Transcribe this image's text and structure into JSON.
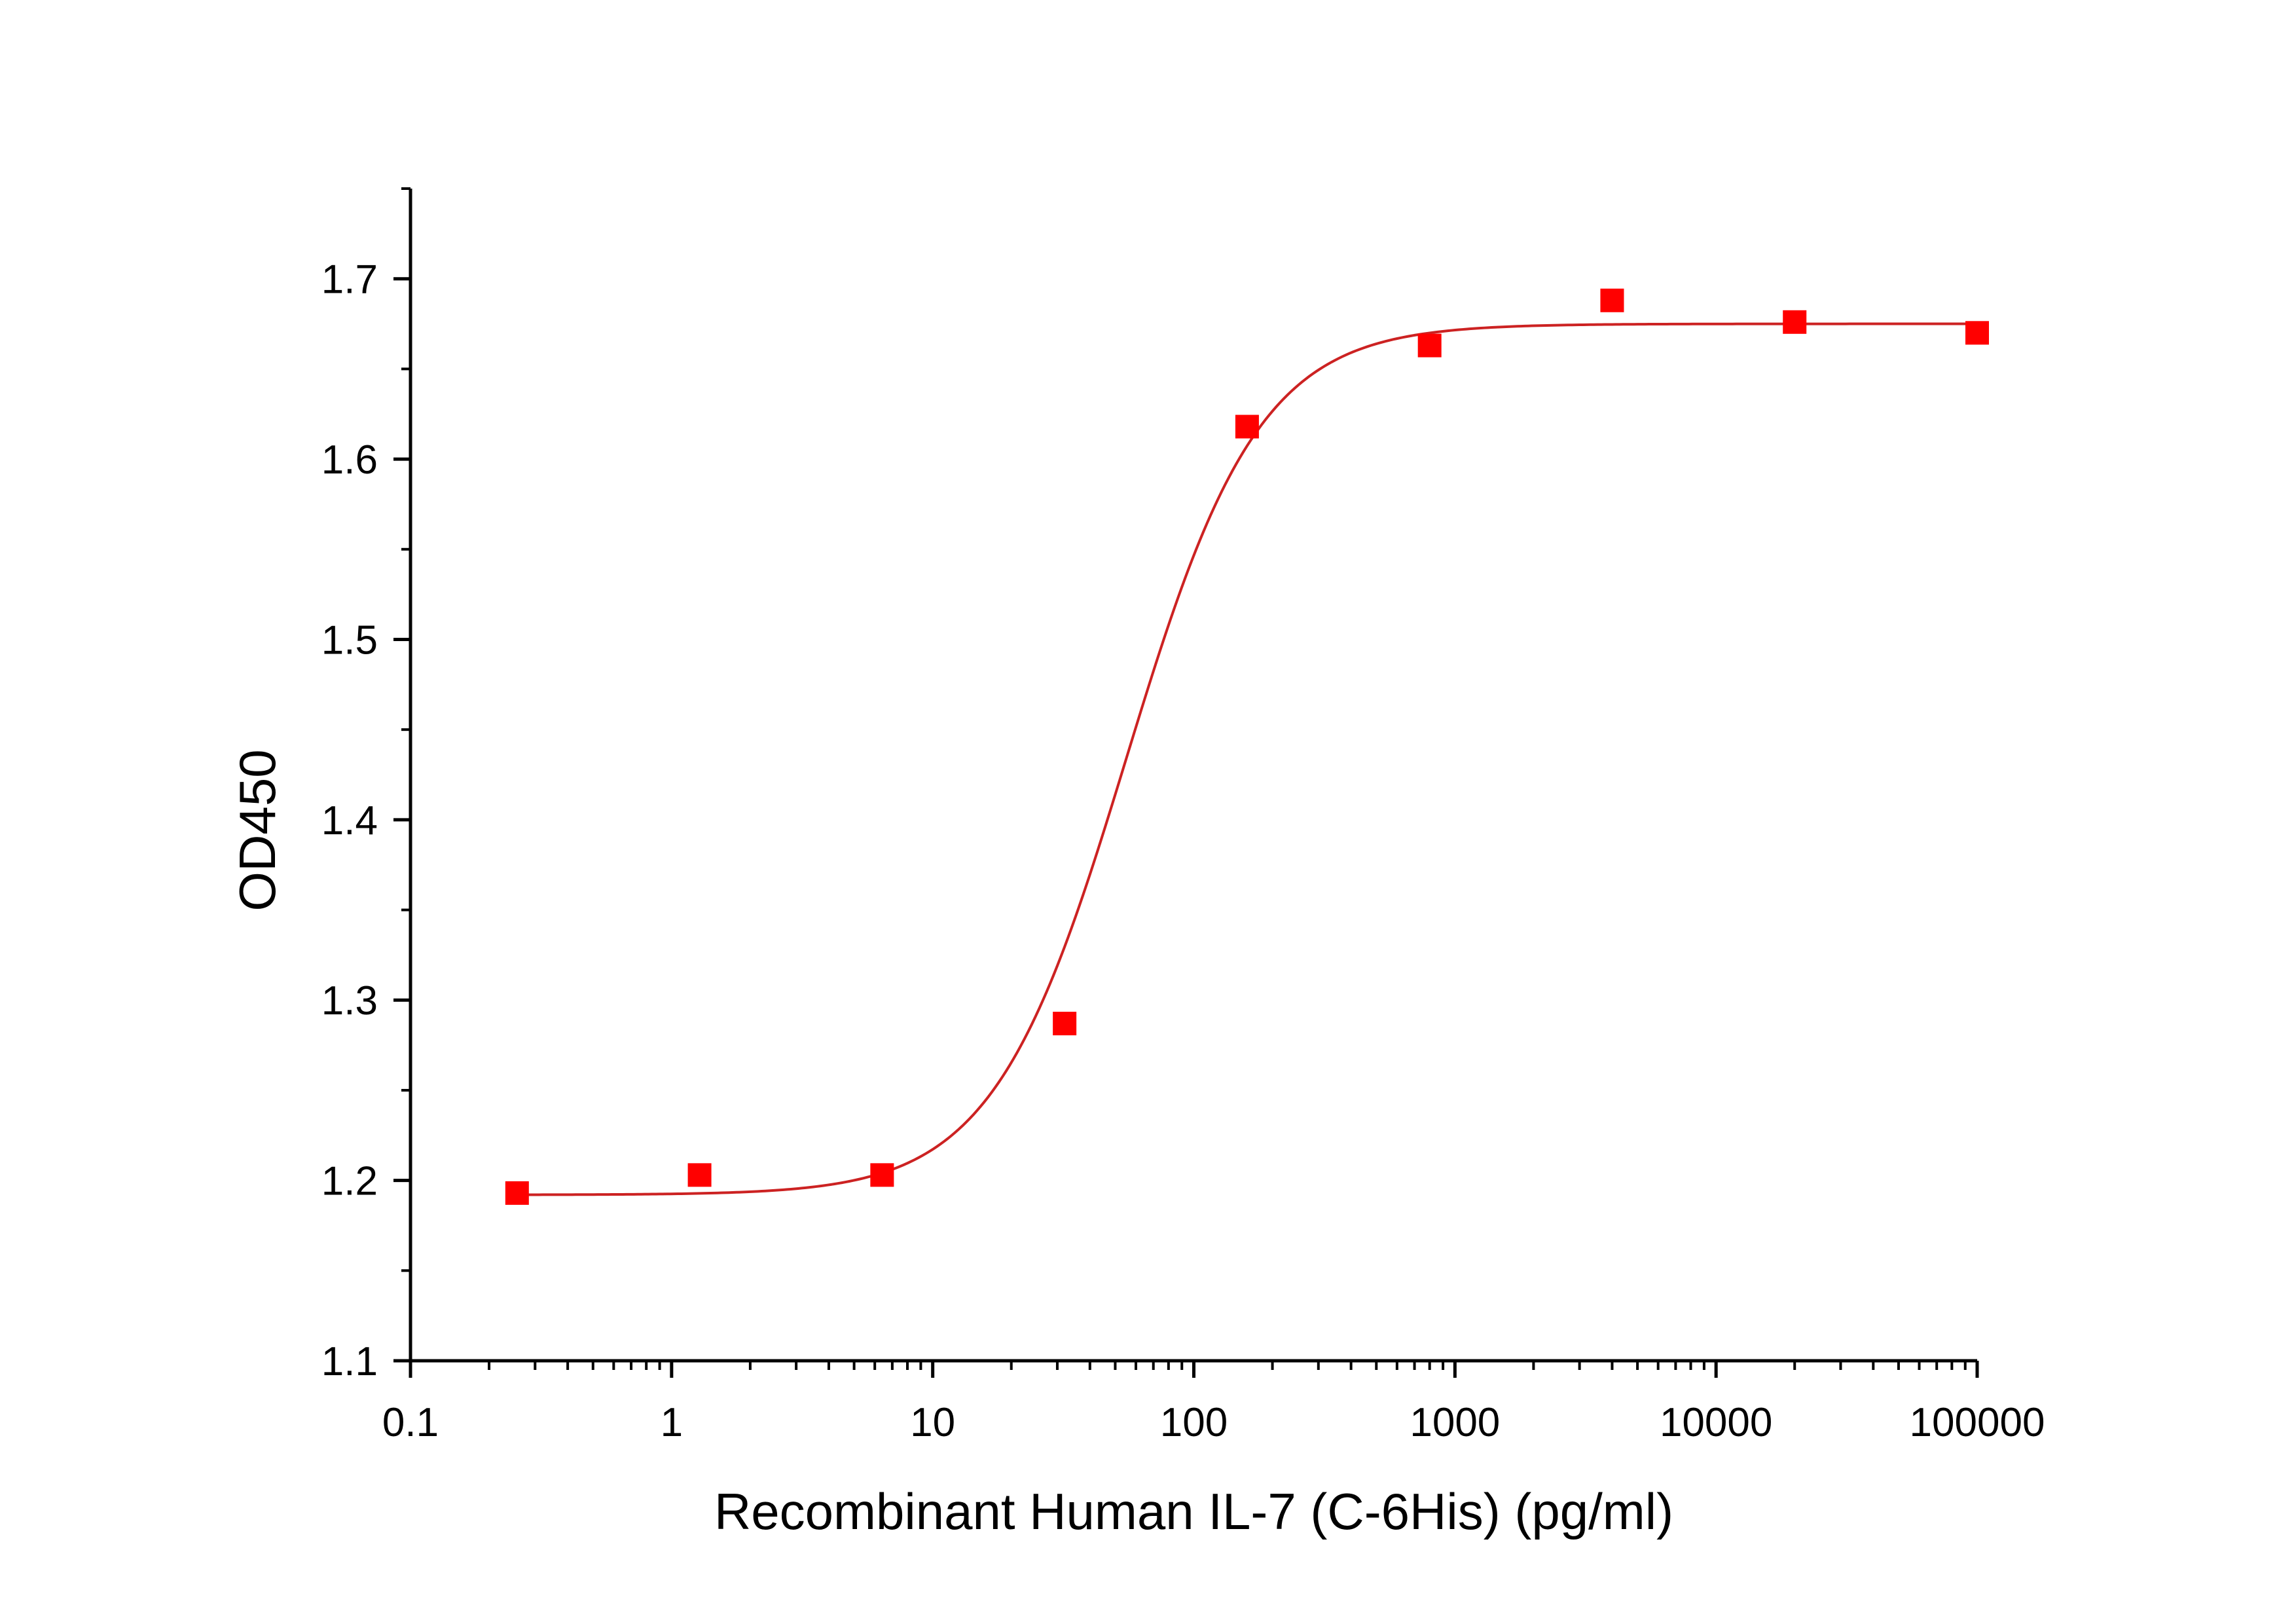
{
  "chart_data": {
    "type": "scatter",
    "title": "",
    "xlabel": "Recombinant Human IL-7 (C-6His) (pg/ml)",
    "ylabel": "OD450",
    "x_scale": "log",
    "xlim": [
      0.1,
      100000
    ],
    "ylim": [
      1.1,
      1.75
    ],
    "x_ticks": [
      0.1,
      1,
      10,
      100,
      1000,
      10000,
      100000
    ],
    "x_tick_labels": [
      "0.1",
      "1",
      "10",
      "100",
      "1000",
      "10000",
      "100000"
    ],
    "y_ticks": [
      1.1,
      1.2,
      1.3,
      1.4,
      1.5,
      1.6,
      1.7
    ],
    "y_tick_labels": [
      "1.1",
      "1.2",
      "1.3",
      "1.4",
      "1.5",
      "1.6",
      "1.7"
    ],
    "grid": false,
    "series": [
      {
        "marker": "square",
        "color": "#ff0000",
        "x": [
          0.256,
          1.28,
          6.4,
          32,
          160,
          800,
          4000,
          20000,
          100000
        ],
        "y": [
          1.193,
          1.203,
          1.203,
          1.287,
          1.618,
          1.663,
          1.688,
          1.676,
          1.67
        ]
      }
    ],
    "fit_curve": {
      "model": "4PL",
      "color": "#cc2222",
      "bottom": 1.192,
      "top": 1.675,
      "ec50": 55,
      "hill": 1.7
    }
  }
}
